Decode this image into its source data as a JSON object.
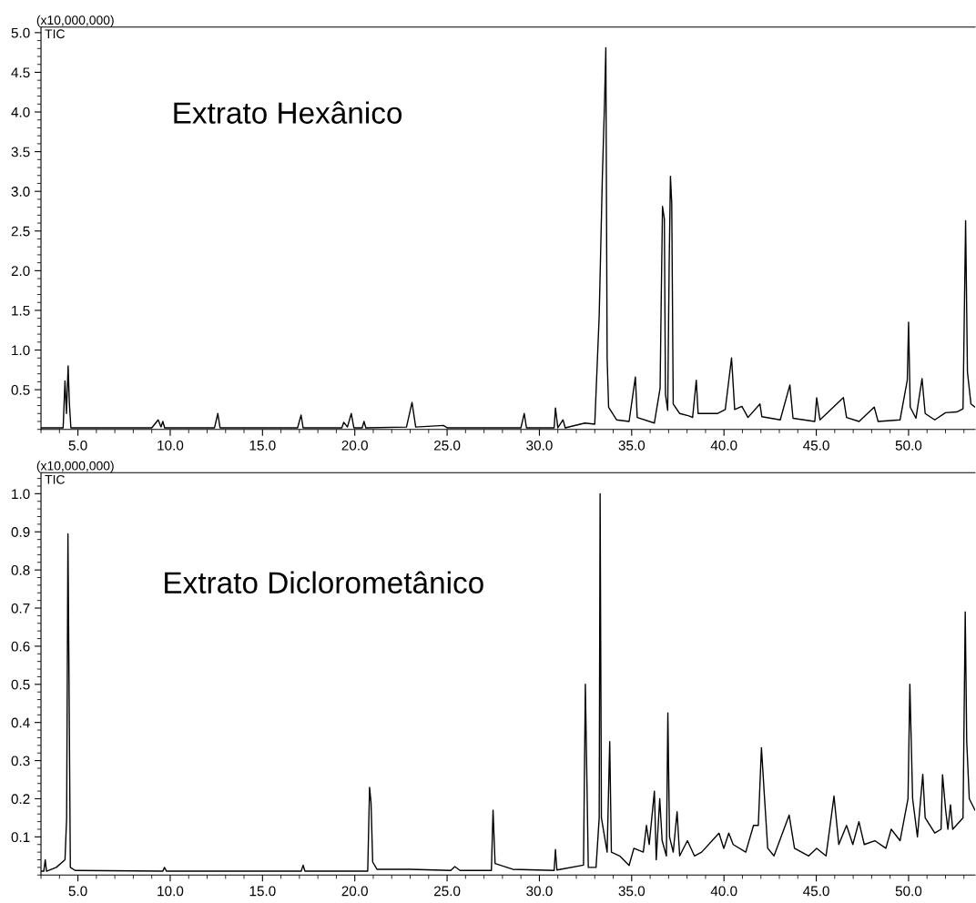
{
  "chart_data": [
    {
      "type": "line",
      "title": "Extrato Hexânico",
      "ylabel": "(x10,000,000)",
      "xlim": [
        3.0,
        53.6
      ],
      "ylim": [
        0,
        5.07
      ],
      "xticks": [
        {
          "value": 5,
          "label": "5.0"
        },
        {
          "value": 10,
          "label": "10.0"
        },
        {
          "value": 15,
          "label": "15.0"
        },
        {
          "value": 20,
          "label": "20.0"
        },
        {
          "value": 25,
          "label": "25.0"
        },
        {
          "value": 30,
          "label": "30.0"
        },
        {
          "value": 35,
          "label": "35.0"
        },
        {
          "value": 40,
          "label": "40.0"
        },
        {
          "value": 45,
          "label": "45.0"
        },
        {
          "value": 50,
          "label": "50.0"
        }
      ],
      "yticks": [
        0.5,
        {
          "value": 1,
          "label": "1.0"
        },
        1.5,
        {
          "value": 2,
          "label": "2.0"
        },
        2.5,
        {
          "value": 3,
          "label": "3.0"
        },
        3.5,
        {
          "value": 4,
          "label": "4.0"
        },
        4.5,
        {
          "value": 5,
          "label": "5.0"
        }
      ],
      "grid": false,
      "legend": false,
      "marker": "none",
      "line_style": "solid",
      "series": [
        {
          "name": "TIC",
          "color": "#000000",
          "x": [
            3.0,
            4.2,
            4.3,
            4.38,
            4.47,
            4.54,
            4.62,
            6.0,
            9.0,
            9.35,
            9.5,
            9.6,
            9.7,
            12.4,
            12.58,
            12.7,
            16.9,
            17.09,
            17.2,
            19.3,
            19.4,
            19.6,
            19.81,
            19.95,
            20.4,
            20.5,
            20.6,
            22.8,
            23.1,
            23.3,
            24.8,
            25.0,
            29.0,
            29.18,
            29.3,
            30.8,
            30.87,
            31.0,
            31.28,
            31.4,
            32.47,
            33.0,
            33.24,
            33.41,
            33.53,
            33.6,
            33.67,
            33.75,
            34.18,
            34.86,
            35.2,
            35.3,
            36.23,
            36.54,
            36.6,
            36.67,
            36.77,
            36.83,
            36.95,
            37.03,
            37.1,
            37.17,
            37.25,
            37.6,
            38.1,
            38.3,
            38.5,
            38.6,
            39.64,
            40.07,
            40.41,
            40.58,
            40.97,
            41.3,
            41.95,
            42.05,
            43.05,
            43.57,
            43.74,
            44.92,
            45.02,
            45.2,
            46.47,
            46.64,
            47.32,
            48.14,
            48.35,
            49.54,
            49.93,
            50.0,
            50.09,
            50.4,
            50.73,
            50.9,
            51.42,
            52.0,
            52.61,
            52.95,
            53.09,
            53.19,
            53.38,
            53.6
          ],
          "values": [
            0.02,
            0.02,
            0.61,
            0.2,
            0.8,
            0.32,
            0.02,
            0.02,
            0.02,
            0.12,
            0.03,
            0.1,
            0.02,
            0.02,
            0.2,
            0.02,
            0.02,
            0.18,
            0.02,
            0.02,
            0.09,
            0.03,
            0.2,
            0.02,
            0.02,
            0.1,
            0.02,
            0.03,
            0.34,
            0.03,
            0.05,
            0.02,
            0.02,
            0.2,
            0.02,
            0.02,
            0.27,
            0.02,
            0.12,
            0.02,
            0.08,
            0.065,
            1.43,
            3.17,
            4.12,
            4.81,
            0.9,
            0.28,
            0.12,
            0.1,
            0.66,
            0.15,
            0.08,
            0.52,
            1.63,
            2.81,
            2.65,
            0.44,
            0.24,
            2.06,
            3.19,
            2.85,
            0.32,
            0.2,
            0.17,
            0.15,
            0.62,
            0.2,
            0.2,
            0.25,
            0.9,
            0.25,
            0.29,
            0.15,
            0.32,
            0.16,
            0.12,
            0.56,
            0.14,
            0.1,
            0.4,
            0.12,
            0.4,
            0.15,
            0.1,
            0.28,
            0.1,
            0.12,
            0.62,
            1.35,
            0.28,
            0.14,
            0.64,
            0.2,
            0.12,
            0.21,
            0.22,
            0.26,
            2.63,
            0.72,
            0.32,
            0.28
          ]
        }
      ]
    },
    {
      "type": "line",
      "title": "Extrato Diclorometânico",
      "ylabel": "(x10,000,000)",
      "xlim": [
        3.0,
        53.6
      ],
      "ylim": [
        0,
        1.055
      ],
      "xticks": [
        {
          "value": 5,
          "label": "5.0"
        },
        {
          "value": 10,
          "label": "10.0"
        },
        {
          "value": 15,
          "label": "15.0"
        },
        {
          "value": 20,
          "label": "20.0"
        },
        {
          "value": 25,
          "label": "25.0"
        },
        {
          "value": 30,
          "label": "30.0"
        },
        {
          "value": 35,
          "label": "35.0"
        },
        {
          "value": 40,
          "label": "40.0"
        },
        {
          "value": 45,
          "label": "45.0"
        },
        {
          "value": 50,
          "label": "50.0"
        }
      ],
      "yticks": [
        0.1,
        0.2,
        0.3,
        0.4,
        0.5,
        0.6,
        0.7,
        0.8,
        0.9,
        {
          "value": 1,
          "label": "1.0"
        }
      ],
      "grid": false,
      "legend": false,
      "marker": "none",
      "line_style": "solid",
      "series": [
        {
          "name": "TIC",
          "color": "#000000",
          "x": [
            3.0,
            3.15,
            3.23,
            3.3,
            3.83,
            4.3,
            4.39,
            4.46,
            4.52,
            4.59,
            4.85,
            9.6,
            9.69,
            9.8,
            17.1,
            17.2,
            17.3,
            20.7,
            20.8,
            20.88,
            20.97,
            21.2,
            23.0,
            25.2,
            25.42,
            25.7,
            27.4,
            27.49,
            27.6,
            28.55,
            30.8,
            30.87,
            30.95,
            32.39,
            32.49,
            32.56,
            32.65,
            33.07,
            33.24,
            33.29,
            33.36,
            33.67,
            33.81,
            33.9,
            34.35,
            34.86,
            35.12,
            35.63,
            35.8,
            35.95,
            36.23,
            36.33,
            36.52,
            36.65,
            36.88,
            36.96,
            37.05,
            37.25,
            37.46,
            37.6,
            38.02,
            38.4,
            38.79,
            39.73,
            39.99,
            40.26,
            40.5,
            41.18,
            41.6,
            41.86,
            42.03,
            42.2,
            42.37,
            42.71,
            43.53,
            43.82,
            44.59,
            45.02,
            45.53,
            45.96,
            46.22,
            46.64,
            46.98,
            47.31,
            47.6,
            48.17,
            48.77,
            49.06,
            49.54,
            49.97,
            50.07,
            50.22,
            50.48,
            50.77,
            50.9,
            51.42,
            51.76,
            51.84,
            52.01,
            52.13,
            52.27,
            52.39,
            52.95,
            53.07,
            53.15,
            53.29,
            53.6
          ],
          "values": [
            0.01,
            0.01,
            0.04,
            0.01,
            0.02,
            0.04,
            0.15,
            0.895,
            0.5,
            0.02,
            0.012,
            0.01,
            0.02,
            0.01,
            0.01,
            0.026,
            0.01,
            0.01,
            0.23,
            0.19,
            0.034,
            0.015,
            0.015,
            0.012,
            0.022,
            0.012,
            0.012,
            0.17,
            0.03,
            0.015,
            0.012,
            0.067,
            0.013,
            0.026,
            0.5,
            0.29,
            0.02,
            0.02,
            0.15,
            1.0,
            0.15,
            0.06,
            0.35,
            0.06,
            0.05,
            0.025,
            0.07,
            0.06,
            0.13,
            0.08,
            0.22,
            0.04,
            0.2,
            0.09,
            0.05,
            0.425,
            0.1,
            0.06,
            0.166,
            0.05,
            0.09,
            0.05,
            0.06,
            0.11,
            0.07,
            0.11,
            0.08,
            0.06,
            0.13,
            0.13,
            0.334,
            0.2,
            0.07,
            0.05,
            0.157,
            0.07,
            0.05,
            0.07,
            0.05,
            0.207,
            0.08,
            0.13,
            0.08,
            0.14,
            0.08,
            0.09,
            0.07,
            0.12,
            0.09,
            0.2,
            0.5,
            0.2,
            0.1,
            0.264,
            0.15,
            0.11,
            0.12,
            0.263,
            0.17,
            0.12,
            0.184,
            0.12,
            0.15,
            0.69,
            0.35,
            0.2,
            0.17
          ]
        }
      ]
    }
  ]
}
